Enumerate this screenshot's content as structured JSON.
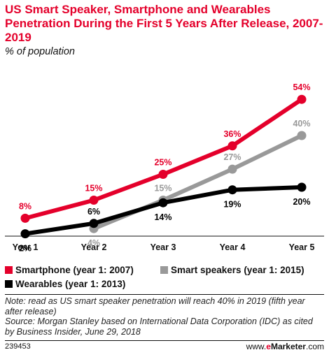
{
  "title": "US Smart Speaker, Smartphone and Wearables Penetration During the First 5 Years After Release, 2007-2019",
  "subtitle": "% of population",
  "notes": {
    "note": "Note: read as US smart speaker penetration will reach 40% in 2019 (fifth year after release)",
    "source": "Source: Morgan Stanley based on International Data Corporation (IDC) as cited by Business Insider, June 29, 2018"
  },
  "footer": {
    "chart_id": "239453",
    "brand_prefix": "www.",
    "brand_e": "e",
    "brand_name": "Marketer",
    "brand_suffix": ".com"
  },
  "colors": {
    "smartphone": "#e4002b",
    "smart_speakers": "#999999",
    "wearables": "#000000",
    "accent": "#e4002b"
  },
  "chart_data": {
    "type": "line",
    "title": "US Smart Speaker, Smartphone and Wearables Penetration During the First 5 Years After Release, 2007-2019",
    "subtitle": "% of population",
    "categories": [
      "Year 1",
      "Year 2",
      "Year 3",
      "Year 4",
      "Year 5"
    ],
    "ylim": [
      0,
      60
    ],
    "grid": false,
    "legend_position": "bottom",
    "series": [
      {
        "name": "Smartphone (year 1: 2007)",
        "color": "#e4002b",
        "values": [
          8,
          15,
          25,
          36,
          54
        ],
        "labels": [
          "8%",
          "15%",
          "25%",
          "36%",
          "54%"
        ],
        "label_position": [
          "above",
          "above",
          "above",
          "above",
          "above"
        ]
      },
      {
        "name": "Smart speakers (year 1: 2015)",
        "color": "#999999",
        "values": [
          null,
          4,
          15,
          27,
          40
        ],
        "labels": [
          null,
          "4%",
          "15%",
          "27%",
          "40%"
        ],
        "label_position": [
          null,
          "below",
          "above",
          "above",
          "above"
        ]
      },
      {
        "name": "Wearables (year 1: 2013)",
        "color": "#000000",
        "values": [
          2,
          6,
          14,
          19,
          20
        ],
        "labels": [
          "2%",
          "6%",
          "14%",
          "19%",
          "20%"
        ],
        "label_position": [
          "below",
          "above",
          "below",
          "below",
          "below"
        ]
      }
    ]
  }
}
